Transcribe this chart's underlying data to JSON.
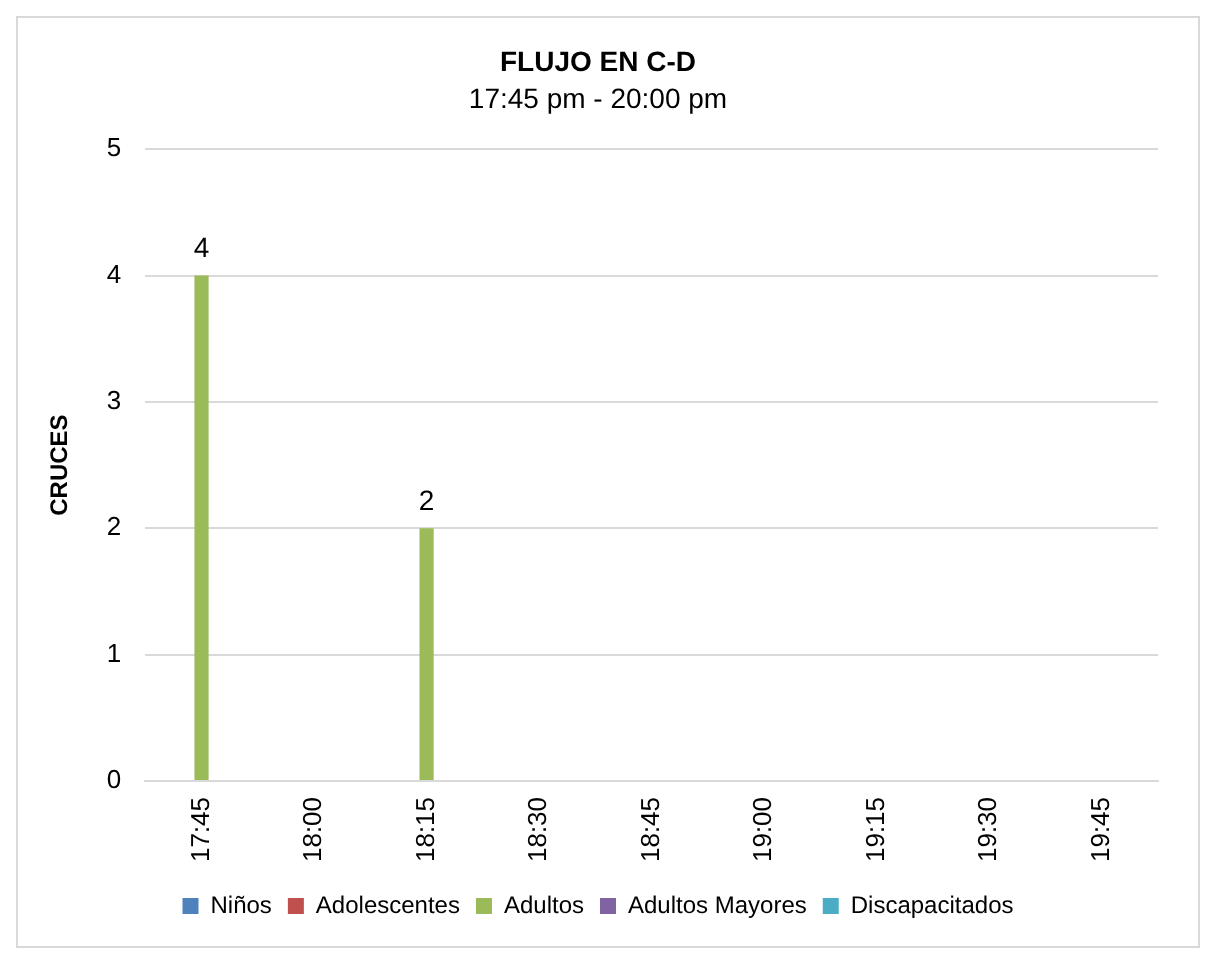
{
  "chart_data": {
    "type": "bar",
    "title": "FLUJO EN C-D",
    "subtitle": "17:45 pm - 20:00 pm",
    "ylabel": "CRUCES",
    "categories": [
      "17:45",
      "18:00",
      "18:15",
      "18:30",
      "18:45",
      "19:00",
      "19:15",
      "19:30",
      "19:45"
    ],
    "series": [
      {
        "name": "Niños",
        "color": "#4f81bd",
        "values": [
          null,
          null,
          null,
          null,
          null,
          null,
          null,
          null,
          null
        ]
      },
      {
        "name": "Adolescentes",
        "color": "#c0504d",
        "values": [
          null,
          null,
          null,
          null,
          null,
          null,
          null,
          null,
          null
        ]
      },
      {
        "name": "Adultos",
        "color": "#9bbb59",
        "values": [
          4,
          null,
          2,
          null,
          null,
          null,
          null,
          null,
          null
        ]
      },
      {
        "name": "Adultos Mayores",
        "color": "#8064a2",
        "values": [
          null,
          null,
          null,
          null,
          null,
          null,
          null,
          null,
          null
        ]
      },
      {
        "name": "Discapacitados",
        "color": "#4bacc6",
        "values": [
          null,
          null,
          null,
          null,
          null,
          null,
          null,
          null,
          null
        ]
      }
    ],
    "ylim": [
      0,
      5
    ],
    "yticks": [
      0,
      1,
      2,
      3,
      4,
      5
    ],
    "grid": "y",
    "legend": "bottom",
    "data_labels": true
  }
}
